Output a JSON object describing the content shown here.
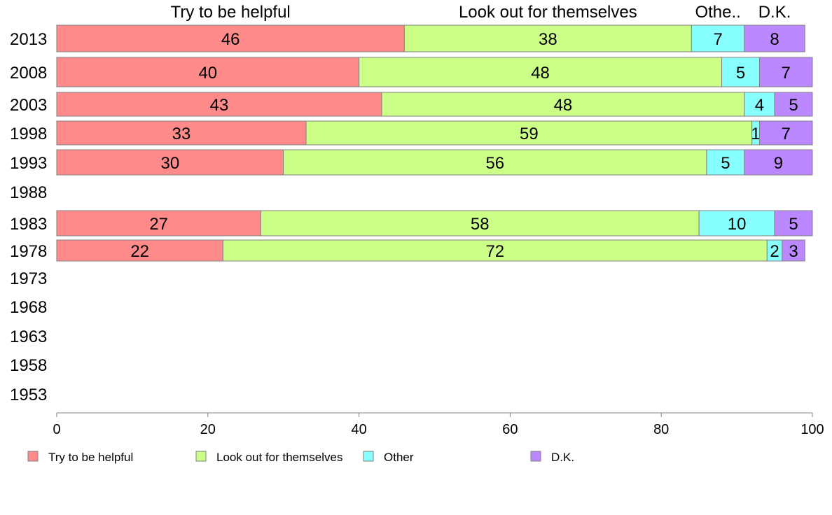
{
  "chart_data": {
    "type": "bar",
    "orientation": "horizontal",
    "stacked": true,
    "categories": [
      "2013",
      "2008",
      "2003",
      "1998",
      "1993",
      "1988",
      "1983",
      "1978",
      "1973",
      "1968",
      "1963",
      "1958",
      "1953"
    ],
    "series": [
      {
        "name": "Try to be helpful",
        "header": "Try to be helpful",
        "color": "#ff8a8a",
        "values": [
          46,
          40,
          43,
          33,
          30,
          null,
          27,
          22,
          null,
          null,
          null,
          null,
          null
        ]
      },
      {
        "name": "Look out for themselves",
        "header": "Look out for themselves",
        "color": "#ccff88",
        "values": [
          38,
          48,
          48,
          59,
          56,
          null,
          58,
          72,
          null,
          null,
          null,
          null,
          null
        ]
      },
      {
        "name": "Other",
        "header": "Othe..",
        "color": "#88ffff",
        "values": [
          7,
          5,
          4,
          1,
          5,
          null,
          10,
          2,
          null,
          null,
          null,
          null,
          null
        ]
      },
      {
        "name": "D.K.",
        "header": "D.K.",
        "color": "#bb88ff",
        "values": [
          8,
          7,
          5,
          7,
          9,
          null,
          5,
          3,
          null,
          null,
          null,
          null,
          null
        ]
      }
    ],
    "xlim": [
      0,
      100
    ],
    "xticks": [
      0,
      20,
      40,
      60,
      80,
      100
    ],
    "grid": false,
    "legend_position": "bottom"
  }
}
